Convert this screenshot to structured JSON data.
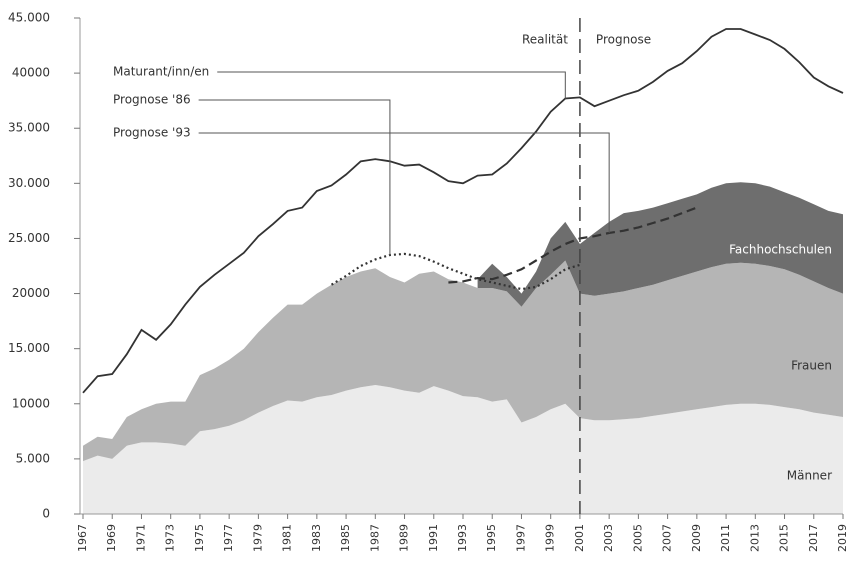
{
  "chart_data": {
    "type": "stacked_area_line",
    "x": [
      1967,
      1968,
      1969,
      1970,
      1971,
      1972,
      1973,
      1974,
      1975,
      1976,
      1977,
      1978,
      1979,
      1980,
      1981,
      1982,
      1983,
      1984,
      1985,
      1986,
      1987,
      1988,
      1989,
      1990,
      1991,
      1992,
      1993,
      1994,
      1995,
      1996,
      1997,
      1998,
      1999,
      2000,
      2001,
      2002,
      2003,
      2004,
      2005,
      2006,
      2007,
      2008,
      2009,
      2010,
      2011,
      2012,
      2013,
      2014,
      2015,
      2016,
      2017,
      2018,
      2019
    ],
    "xlim": [
      1967,
      2019
    ],
    "xticks": [
      1967,
      1969,
      1971,
      1973,
      1975,
      1977,
      1979,
      1981,
      1983,
      1985,
      1987,
      1989,
      1991,
      1993,
      1995,
      1997,
      1999,
      2001,
      2003,
      2005,
      2007,
      2009,
      2011,
      2013,
      2015,
      2017,
      2019
    ],
    "ylim": [
      0,
      45000
    ],
    "yticks": [
      0,
      {
        "value": 5000,
        "label": "5.000"
      },
      10000,
      {
        "value": 15000,
        "label": "15.000"
      },
      20000,
      {
        "value": 25000,
        "label": "25.000"
      },
      {
        "value": 30000,
        "label": "30.000"
      },
      {
        "value": 35000,
        "label": "35.000"
      },
      40000,
      {
        "value": 45000,
        "label": "45.000"
      }
    ],
    "series": [
      {
        "name": "Männer",
        "kind": "area",
        "color": "#ebebeb",
        "values": [
          4800,
          5300,
          5000,
          6200,
          6500,
          6500,
          6400,
          6200,
          7500,
          7700,
          8000,
          8500,
          9200,
          9800,
          10300,
          10200,
          10600,
          10800,
          11200,
          11500,
          11700,
          11500,
          11200,
          11000,
          11600,
          11200,
          10700,
          10600,
          10200,
          10400,
          8300,
          8800,
          9500,
          10000,
          8700,
          8500,
          8500,
          8600,
          8700,
          8900,
          9100,
          9300,
          9500,
          9700,
          9900,
          10000,
          10000,
          9900,
          9700,
          9500,
          9200,
          9000,
          8800
        ]
      },
      {
        "name": "Frauen",
        "kind": "area",
        "color": "#b5b5b5",
        "values": [
          1400,
          1700,
          1800,
          2600,
          3000,
          3500,
          3800,
          4000,
          5100,
          5500,
          6000,
          6500,
          7300,
          8000,
          8700,
          8800,
          9400,
          10000,
          10300,
          10500,
          10600,
          10000,
          9800,
          10800,
          10400,
          10100,
          10300,
          9900,
          10300,
          9800,
          10500,
          11700,
          12200,
          13000,
          11300,
          11300,
          11500,
          11600,
          11800,
          11900,
          12100,
          12300,
          12500,
          12700,
          12800,
          12800,
          12700,
          12600,
          12500,
          12200,
          11900,
          11500,
          11200
        ]
      },
      {
        "name": "Fachhochschulen",
        "kind": "area",
        "color": "#6e6e6e",
        "values": [
          null,
          null,
          null,
          null,
          null,
          null,
          null,
          null,
          null,
          null,
          null,
          null,
          null,
          null,
          null,
          null,
          null,
          null,
          null,
          null,
          null,
          null,
          null,
          null,
          null,
          null,
          null,
          800,
          2200,
          1300,
          1200,
          1500,
          3300,
          3500,
          4500,
          5700,
          6500,
          7100,
          7000,
          7000,
          7000,
          7000,
          7000,
          7200,
          7300,
          7300,
          7300,
          7200,
          7000,
          7000,
          7000,
          7000,
          7200
        ]
      },
      {
        "name": "Maturant/inn/en",
        "kind": "line",
        "dash": "solid",
        "color": "#333333",
        "values": [
          11000,
          12500,
          12700,
          14500,
          16700,
          15800,
          17200,
          19000,
          20600,
          21700,
          22700,
          23700,
          25200,
          26300,
          27500,
          27800,
          29300,
          29800,
          30800,
          32000,
          32200,
          32000,
          31600,
          31700,
          31000,
          30200,
          30000,
          30700,
          30800,
          31800,
          33200,
          34700,
          36500,
          37700,
          37800,
          37000,
          37500,
          38000,
          38400,
          39200,
          40200,
          40900,
          42000,
          43300,
          44000,
          44000,
          43500,
          43000,
          42200,
          41000,
          39600,
          38800,
          38200
        ]
      },
      {
        "name": "Prognose '86",
        "kind": "line",
        "dash": "dotted",
        "color": "#333333",
        "values": [
          null,
          null,
          null,
          null,
          null,
          null,
          null,
          null,
          null,
          null,
          null,
          null,
          null,
          null,
          null,
          null,
          null,
          20800,
          21600,
          22500,
          23100,
          23500,
          23600,
          23400,
          22900,
          22300,
          21800,
          21300,
          21000,
          20700,
          20400,
          20600,
          21300,
          22200,
          22600,
          null,
          null,
          null,
          null,
          null,
          null,
          null,
          null,
          null,
          null,
          null,
          null,
          null,
          null,
          null,
          null,
          null,
          null
        ]
      },
      {
        "name": "Prognose '93",
        "kind": "line",
        "dash": "dashed",
        "color": "#333333",
        "values": [
          null,
          null,
          null,
          null,
          null,
          null,
          null,
          null,
          null,
          null,
          null,
          null,
          null,
          null,
          null,
          null,
          null,
          null,
          null,
          null,
          null,
          null,
          null,
          null,
          null,
          21000,
          21100,
          21400,
          21300,
          21700,
          22200,
          23000,
          23800,
          24500,
          25000,
          25200,
          25500,
          25700,
          26000,
          26400,
          26800,
          27300,
          27800,
          null,
          null,
          null,
          null,
          null,
          null,
          null,
          null,
          null,
          null
        ]
      }
    ],
    "divider": {
      "x": 2001,
      "labels": [
        "Realität",
        "Prognose"
      ]
    }
  }
}
